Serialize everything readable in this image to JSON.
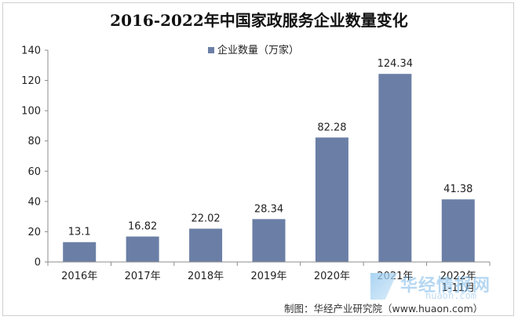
{
  "chart_data": {
    "type": "bar",
    "title": "2016-2022年中国家政服务企业数量变化",
    "categories": [
      "2016年",
      "2017年",
      "2018年",
      "2019年",
      "2020年",
      "2021年",
      "2022年\n1-11月"
    ],
    "series": [
      {
        "name": "企业数量（万家）",
        "values": [
          13.1,
          16.82,
          22.02,
          28.34,
          82.28,
          124.34,
          41.38
        ],
        "data_labels": [
          "13.1",
          "16.82",
          "22.02",
          "28.34",
          "82.28",
          "124.34",
          "41.38"
        ],
        "color": "#6b7fa6"
      }
    ],
    "ylim": [
      0,
      140
    ],
    "yticks": [
      0,
      20,
      40,
      60,
      80,
      100,
      120,
      140
    ],
    "grid": false,
    "legend_position": "top-center"
  },
  "source": "制图：华经产业研究院（www.huaon.com）",
  "watermark": {
    "text": "华经情报网",
    "url": "huaon.com"
  }
}
